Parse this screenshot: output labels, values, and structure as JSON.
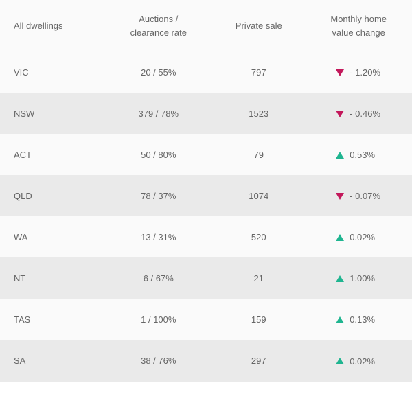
{
  "table": {
    "headers": {
      "col0": "All dwellings",
      "col1": "Auctions /\nclearance rate",
      "col2": "Private sale",
      "col3": "Monthly home\nvalue change"
    },
    "colors": {
      "down": "#c3185b",
      "up": "#1fb590",
      "text": "#666666",
      "header_bg": "#fafafa",
      "row_bg": "#fafafa",
      "alt_row_bg": "#eaeaea"
    },
    "rows": [
      {
        "region": "VIC",
        "auctions": "20 / 55%",
        "private": "797",
        "dir": "down",
        "change": "- 1.20%"
      },
      {
        "region": "NSW",
        "auctions": "379 / 78%",
        "private": "1523",
        "dir": "down",
        "change": "- 0.46%"
      },
      {
        "region": "ACT",
        "auctions": "50 / 80%",
        "private": "79",
        "dir": "up",
        "change": "0.53%"
      },
      {
        "region": "QLD",
        "auctions": "78 / 37%",
        "private": "1074",
        "dir": "down",
        "change": "- 0.07%"
      },
      {
        "region": "WA",
        "auctions": "13 / 31%",
        "private": "520",
        "dir": "up",
        "change": "0.02%"
      },
      {
        "region": "NT",
        "auctions": "6 / 67%",
        "private": "21",
        "dir": "up",
        "change": "1.00%"
      },
      {
        "region": "TAS",
        "auctions": "1 / 100%",
        "private": "159",
        "dir": "up",
        "change": "0.13%"
      },
      {
        "region": "SA",
        "auctions": "38 / 76%",
        "private": "297",
        "dir": "up",
        "change": "0.02%"
      }
    ]
  }
}
